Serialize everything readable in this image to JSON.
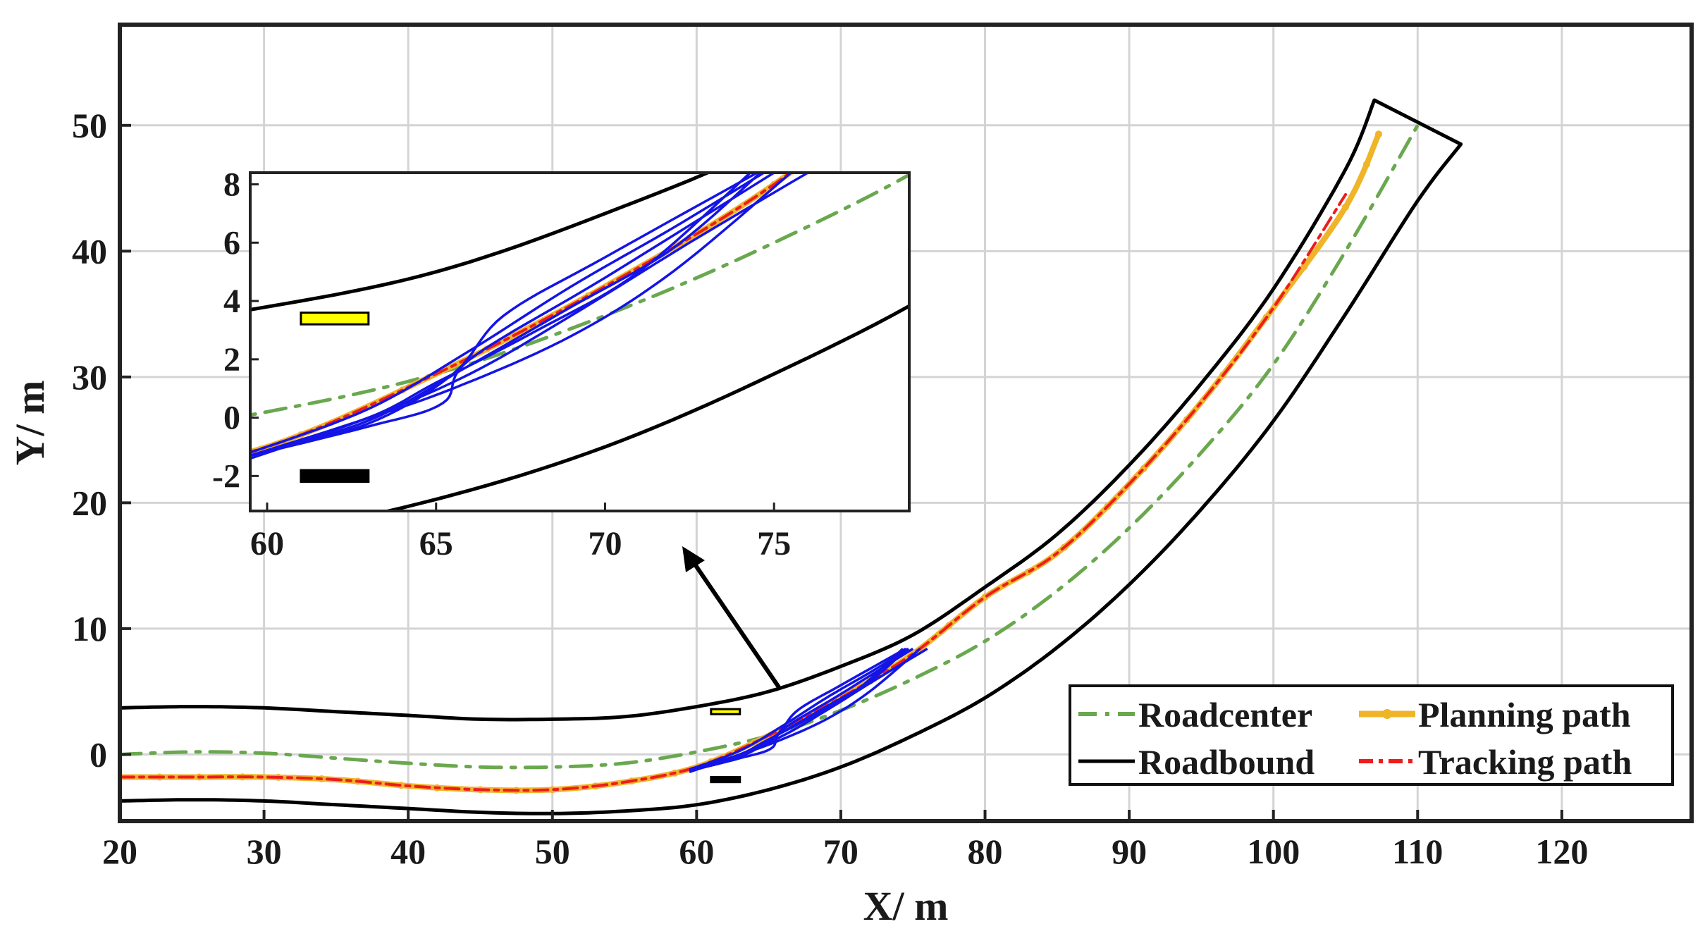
{
  "chart_data": {
    "type": "line",
    "xlabel": "X/ m",
    "ylabel": "Y/ m",
    "xlim": [
      20,
      129
    ],
    "ylim": [
      -5.3,
      58
    ],
    "xticks": [
      20,
      30,
      40,
      50,
      60,
      70,
      80,
      90,
      100,
      110,
      120
    ],
    "yticks": [
      0,
      10,
      20,
      30,
      40,
      50
    ],
    "grid": true,
    "legend": {
      "placement": "bottom-right",
      "entries": [
        "Roadcenter",
        "Planning path",
        "Roadbound",
        "Tracking path"
      ]
    },
    "colors": {
      "roadcenter": "#6aa84f",
      "planning": "#f0b429",
      "tracking": "#ee1c1c",
      "roadbound": "#000000",
      "candidates": "#1414e6",
      "obstacle_yellow": "#ffff00"
    },
    "series": [
      {
        "name": "Roadcenter",
        "style": "dashdot",
        "x": [
          20,
          25,
          30,
          35,
          40,
          45,
          50,
          55,
          60,
          65,
          70,
          75,
          80,
          85,
          90,
          95,
          100,
          105,
          110
        ],
        "y": [
          0,
          0.2,
          0.1,
          -0.3,
          -0.7,
          -1.0,
          -1.0,
          -0.7,
          0.2,
          1.5,
          3.5,
          6.0,
          9.0,
          13.0,
          18.0,
          24.0,
          31.0,
          40.0,
          50.0
        ]
      },
      {
        "name": "Roadbound",
        "style": "solid",
        "x": [
          20,
          25,
          30,
          35,
          40,
          45,
          50,
          55,
          60,
          65,
          70,
          75,
          80,
          85,
          90,
          95,
          100,
          105,
          107
        ],
        "y": [
          3.7,
          3.8,
          3.7,
          3.4,
          3.1,
          2.8,
          2.8,
          3.0,
          3.8,
          5.0,
          7.0,
          9.5,
          13.3,
          17.5,
          23.0,
          29.5,
          37.0,
          46.5,
          52.0
        ]
      },
      {
        "name": "Roadbound",
        "style": "solid",
        "x": [
          20,
          25,
          30,
          35,
          40,
          45,
          50,
          55,
          60,
          65,
          70,
          75,
          80,
          85,
          90,
          95,
          100,
          105,
          110,
          113
        ],
        "y": [
          -3.7,
          -3.6,
          -3.7,
          -4.0,
          -4.3,
          -4.6,
          -4.7,
          -4.5,
          -4.0,
          -2.8,
          -1.0,
          1.5,
          4.5,
          8.5,
          13.5,
          19.5,
          26.5,
          35.0,
          44.0,
          48.5
        ]
      },
      {
        "name": "Planning path",
        "style": "solid-marker",
        "x": [
          20,
          25,
          30,
          35,
          40,
          45,
          50,
          55,
          60,
          65,
          70,
          75,
          80,
          85,
          90,
          95,
          100,
          105,
          107.3
        ],
        "y": [
          -1.8,
          -1.8,
          -1.8,
          -2.0,
          -2.5,
          -2.8,
          -2.8,
          -2.2,
          -1.0,
          1.5,
          4.5,
          8.0,
          12.5,
          16.0,
          21.5,
          28.0,
          35.5,
          43.5,
          49.3
        ]
      },
      {
        "name": "Tracking path",
        "style": "dashdot",
        "x": [
          20,
          25,
          30,
          35,
          40,
          45,
          50,
          55,
          60,
          65,
          70,
          75,
          80,
          85,
          90,
          95,
          100,
          105
        ],
        "y": [
          -1.8,
          -1.8,
          -1.8,
          -2.0,
          -2.5,
          -2.8,
          -2.8,
          -2.2,
          -1.0,
          1.5,
          4.5,
          8.0,
          12.5,
          16.0,
          21.5,
          28.0,
          35.5,
          44.5
        ]
      }
    ],
    "obstacles": [
      {
        "name": "yellow vehicle",
        "x": [
          61,
          63
        ],
        "y": [
          3.2,
          3.6
        ]
      },
      {
        "name": "black vehicle",
        "x": [
          61,
          63
        ],
        "y": [
          -2.2,
          -1.8
        ]
      }
    ],
    "inset": {
      "xlim": [
        59.5,
        79
      ],
      "ylim": [
        -3.2,
        8.4
      ],
      "xticks": [
        60,
        65,
        70,
        75
      ],
      "yticks": [
        -2,
        0,
        2,
        4,
        6,
        8
      ]
    }
  }
}
